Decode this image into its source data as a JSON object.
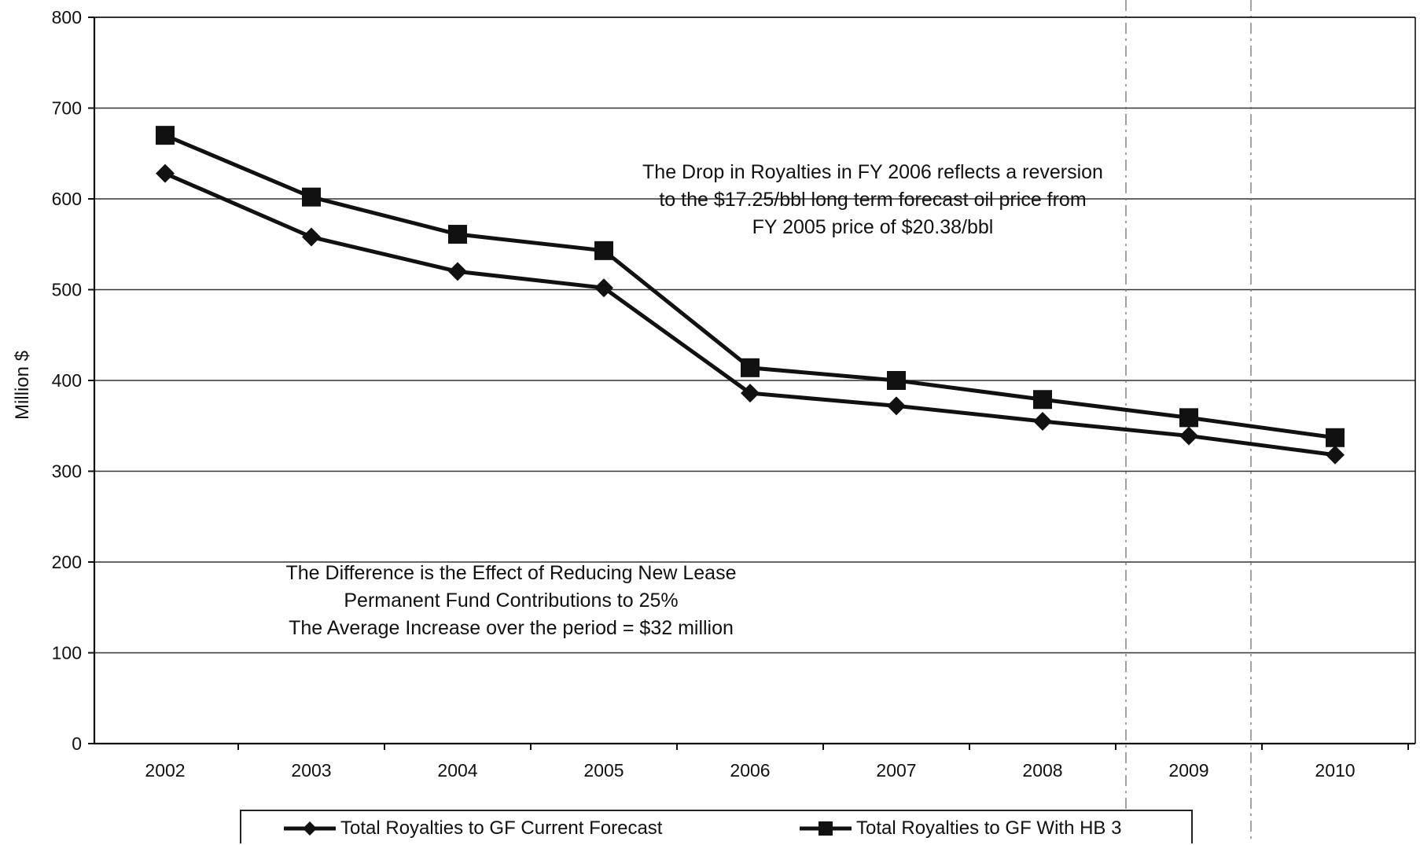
{
  "chart_data": {
    "type": "line",
    "title": "",
    "xlabel": "",
    "ylabel": "Million $",
    "categories": [
      "2002",
      "2003",
      "2004",
      "2005",
      "2006",
      "2007",
      "2008",
      "2009",
      "2010"
    ],
    "ylim": [
      0,
      800
    ],
    "yticks": [
      "0",
      "100",
      "200",
      "300",
      "400",
      "500",
      "600",
      "700",
      "800"
    ],
    "grid": true,
    "legend_position": "bottom",
    "series": [
      {
        "name": "Total Royalties to GF Current Forecast",
        "marker": "diamond",
        "color": "#111111",
        "values": [
          628,
          558,
          520,
          502,
          386,
          372,
          355,
          339,
          318
        ]
      },
      {
        "name": "Total Royalties to GF With HB 3",
        "marker": "square",
        "color": "#111111",
        "values": [
          670,
          602,
          561,
          543,
          414,
          400,
          379,
          359,
          337
        ]
      }
    ],
    "annotations": [
      {
        "lines": [
          "The Drop in Royalties in FY 2006 reflects a reversion",
          "to the $17.25/bbl long term forecast oil price from",
          "FY 2005 price of $20.38/bbl"
        ]
      },
      {
        "lines": [
          "The Difference is the Effect of Reducing New Lease",
          "Permanent Fund Contributions to 25%",
          "The Average Increase over the period = $32 million"
        ]
      }
    ]
  }
}
